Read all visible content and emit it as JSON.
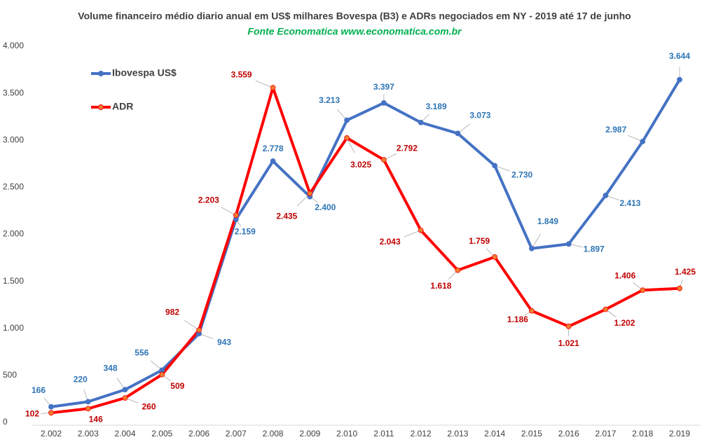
{
  "chart_data": {
    "type": "line",
    "title": "Volume financeiro médio diario anual em US$ milhares Bovespa (B3) e ADRs negociados em NY - 2019 até 17 de junho",
    "subtitle": "Fonte Economatica www.economatica.com.br",
    "categories": [
      "2.002",
      "2.003",
      "2.004",
      "2.005",
      "2.006",
      "2.007",
      "2.008",
      "2.009",
      "2.010",
      "2.011",
      "2.012",
      "2.013",
      "2.014",
      "2.015",
      "2.016",
      "2.017",
      "2.018",
      "2.019"
    ],
    "series": [
      {
        "name": "Ibovespa US$",
        "color": "#4472c4",
        "marker_color": "#4472c4",
        "label_color": "#2e75b6",
        "values": [
          166,
          220,
          348,
          556,
          943,
          2159,
          2778,
          2400,
          3213,
          3397,
          3189,
          3073,
          2730,
          1849,
          1897,
          2413,
          2987,
          3644
        ],
        "value_labels": [
          "166",
          "220",
          "348",
          "556",
          "943",
          "2.159",
          "2.778",
          "2.400",
          "3.213",
          "3.397",
          "3.189",
          "3.073",
          "2.730",
          "1.849",
          "1.897",
          "2.413",
          "2.987",
          "3.644"
        ]
      },
      {
        "name": "ADR",
        "color": "#ff0000",
        "marker_color": "#ed7d31",
        "label_color": "#c00000",
        "values": [
          102,
          146,
          260,
          509,
          982,
          2203,
          3559,
          2435,
          3025,
          2792,
          2043,
          1618,
          1759,
          1186,
          1021,
          1202,
          1406,
          1425
        ],
        "value_labels": [
          "102",
          "146",
          "260",
          "509",
          "982",
          "2.203",
          "3.559",
          "2.435",
          "3.025",
          "2.792",
          "2.043",
          "1.618",
          "1.759",
          "1.186",
          "1.021",
          "1.202",
          "1.406",
          "1.425"
        ]
      }
    ],
    "ylim": [
      0,
      4000
    ],
    "yticks": [
      0,
      500,
      {
        "value": 1000,
        "label": "1.000"
      },
      {
        "value": 1500,
        "label": "1.500"
      },
      {
        "value": 2000,
        "label": "2.000"
      },
      {
        "value": 2500,
        "label": "2.500"
      },
      {
        "value": 3000,
        "label": "3.000"
      },
      {
        "value": 3500,
        "label": "3.500"
      },
      {
        "value": 4000,
        "label": "4.000"
      }
    ],
    "grid": false,
    "legend": "upper left"
  }
}
